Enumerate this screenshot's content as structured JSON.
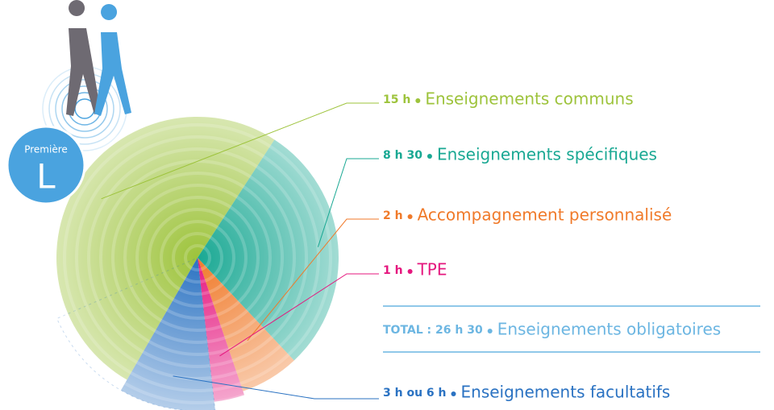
{
  "chart_data": {
    "type": "pie",
    "badge": {
      "line1": "Première",
      "line2": "L"
    },
    "categories": [
      "Enseignements communs",
      "Enseignements spécifiques",
      "Accompagnement personnalisé",
      "TPE"
    ],
    "values": [
      15,
      8.5,
      2,
      1
    ],
    "value_labels": [
      "15 h",
      "8 h 30",
      "2 h",
      "1 h"
    ],
    "colors": [
      "#9dc33b",
      "#19a893",
      "#f07a2a",
      "#e5177e"
    ],
    "total": {
      "label": "TOTAL : 26 h 30",
      "value": 26.5,
      "name": "Enseignements obligatoires",
      "color": "#6cb6e2"
    },
    "extra": {
      "name": "Enseignements facultatifs",
      "label": "3 h ou 6 h",
      "values": [
        3,
        6
      ],
      "color": "#2a72c2"
    }
  }
}
